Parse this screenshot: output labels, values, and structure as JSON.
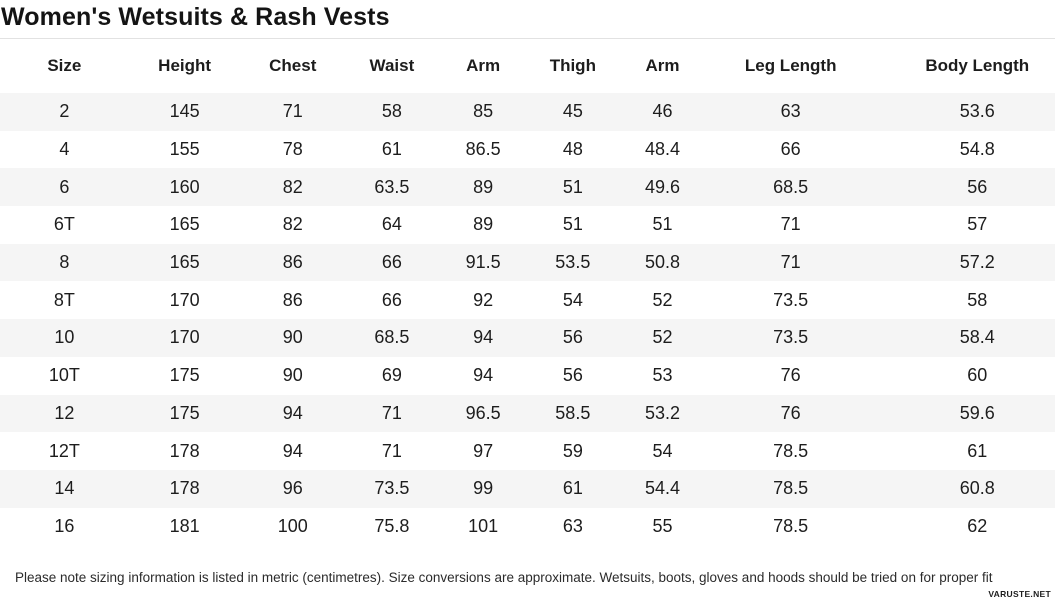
{
  "page": {
    "title": "Women's Wetsuits & Rash Vests",
    "footer_note": "Please note sizing information is listed in metric (centimetres). Size conversions are approximate. Wetsuits, boots, gloves and hoods should be tried on for proper fit",
    "watermark": "VARUSTE.NET"
  },
  "table": {
    "columns": [
      "Size",
      "Height",
      "Chest",
      "Waist",
      "Arm",
      "Thigh",
      "Arm",
      "Leg Length",
      "Body Length"
    ],
    "column_widths_percent": [
      12.2,
      10.6,
      9.9,
      8.9,
      8.4,
      8.6,
      8.4,
      15.9,
      17.1
    ],
    "rows": [
      [
        "2",
        "145",
        "71",
        "58",
        "85",
        "45",
        "46",
        "63",
        "53.6"
      ],
      [
        "4",
        "155",
        "78",
        "61",
        "86.5",
        "48",
        "48.4",
        "66",
        "54.8"
      ],
      [
        "6",
        "160",
        "82",
        "63.5",
        "89",
        "51",
        "49.6",
        "68.5",
        "56"
      ],
      [
        "6T",
        "165",
        "82",
        "64",
        "89",
        "51",
        "51",
        "71",
        "57"
      ],
      [
        "8",
        "165",
        "86",
        "66",
        "91.5",
        "53.5",
        "50.8",
        "71",
        "57.2"
      ],
      [
        "8T",
        "170",
        "86",
        "66",
        "92",
        "54",
        "52",
        "73.5",
        "58"
      ],
      [
        "10",
        "170",
        "90",
        "68.5",
        "94",
        "56",
        "52",
        "73.5",
        "58.4"
      ],
      [
        "10T",
        "175",
        "90",
        "69",
        "94",
        "56",
        "53",
        "76",
        "60"
      ],
      [
        "12",
        "175",
        "94",
        "71",
        "96.5",
        "58.5",
        "53.2",
        "76",
        "59.6"
      ],
      [
        "12T",
        "178",
        "94",
        "71",
        "97",
        "59",
        "54",
        "78.5",
        "61"
      ],
      [
        "14",
        "178",
        "96",
        "73.5",
        "99",
        "61",
        "54.4",
        "78.5",
        "60.8"
      ],
      [
        "16",
        "181",
        "100",
        "75.8",
        "101",
        "63",
        "55",
        "78.5",
        "62"
      ]
    ]
  },
  "colors": {
    "row_stripe": "#f5f5f5",
    "divider": "#e2e2e2",
    "text": "#1d1d1d",
    "background": "#ffffff"
  }
}
